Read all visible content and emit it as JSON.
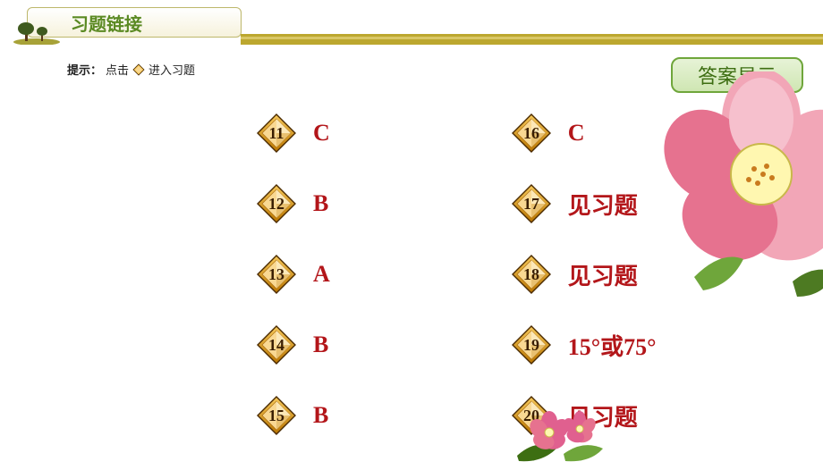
{
  "header": {
    "title": "习题链接",
    "title_color": "#5b8a23",
    "banner_border": "#bdb76b",
    "stripe_color": "#bca72f",
    "stripe_inner": "#d9c766"
  },
  "hint": {
    "prefix_bold": "提示：",
    "text_before": "点击",
    "text_after": "进入习题"
  },
  "answers_button": {
    "label": "答案显示",
    "border": "#6fa63b",
    "text_color": "#3d6e12"
  },
  "diamond_colors": {
    "outer_border": "#4a2a00",
    "outer_fill_top": "#f6c85a",
    "outer_fill_bottom": "#b97500",
    "inner_fill": "#f9d892",
    "inner_shadow": "#a66a10",
    "number_color": "#3a1e00"
  },
  "answer_color": "#b3161a",
  "left_column": [
    {
      "num": "11",
      "answer": "C"
    },
    {
      "num": "12",
      "answer": "B"
    },
    {
      "num": "13",
      "answer": "A"
    },
    {
      "num": "14",
      "answer": "B"
    },
    {
      "num": "15",
      "answer": "B"
    }
  ],
  "right_column": [
    {
      "num": "16",
      "answer": "C"
    },
    {
      "num": "17",
      "answer": "见习题"
    },
    {
      "num": "18",
      "answer": "见习题"
    },
    {
      "num": "19",
      "answer": "15°或75°"
    },
    {
      "num": "20",
      "answer": "见习题"
    }
  ],
  "flower": {
    "petal_color": "#f2a6b7",
    "petal_dark": "#e6728f",
    "center_color": "#fff7b0",
    "center_stroke": "#c9b84a",
    "center_dot": "#c97b1e",
    "leaf_color": "#6fa63b",
    "leaf_dark": "#4d7a22",
    "small_petal": "#e0608f",
    "small_leaf": "#3d6e12"
  },
  "tree_icon": {
    "trunk": "#5a3a1a",
    "foliage": "#3f5a1e",
    "grass": "#a7a238"
  }
}
